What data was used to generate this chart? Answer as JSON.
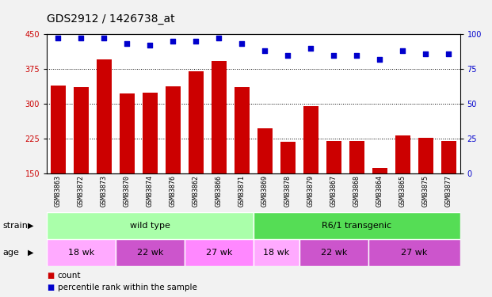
{
  "title": "GDS2912 / 1426738_at",
  "samples": [
    "GSM83863",
    "GSM83872",
    "GSM83873",
    "GSM83870",
    "GSM83874",
    "GSM83876",
    "GSM83862",
    "GSM83866",
    "GSM83871",
    "GSM83869",
    "GSM83878",
    "GSM83879",
    "GSM83867",
    "GSM83868",
    "GSM83864",
    "GSM83865",
    "GSM83875",
    "GSM83877"
  ],
  "counts": [
    340,
    337,
    395,
    322,
    325,
    338,
    370,
    393,
    336,
    248,
    218,
    295,
    221,
    221,
    162,
    232,
    227,
    220
  ],
  "percentiles": [
    97,
    97,
    97,
    93,
    92,
    95,
    95,
    97,
    93,
    88,
    85,
    90,
    85,
    85,
    82,
    88,
    86,
    86
  ],
  "bar_color": "#cc0000",
  "dot_color": "#0000cc",
  "ylim_left": [
    150,
    450
  ],
  "ylim_right": [
    0,
    100
  ],
  "yticks_left": [
    150,
    225,
    300,
    375,
    450
  ],
  "yticks_right": [
    0,
    25,
    50,
    75,
    100
  ],
  "strain_groups": [
    {
      "label": "wild type",
      "start": 0,
      "end": 9,
      "color": "#aaffaa"
    },
    {
      "label": "R6/1 transgenic",
      "start": 9,
      "end": 18,
      "color": "#55dd55"
    }
  ],
  "age_groups": [
    {
      "label": "18 wk",
      "start": 0,
      "end": 3,
      "color": "#ffaaff"
    },
    {
      "label": "22 wk",
      "start": 3,
      "end": 6,
      "color": "#cc55cc"
    },
    {
      "label": "27 wk",
      "start": 6,
      "end": 9,
      "color": "#ff88ff"
    },
    {
      "label": "18 wk",
      "start": 9,
      "end": 11,
      "color": "#ffaaff"
    },
    {
      "label": "22 wk",
      "start": 11,
      "end": 14,
      "color": "#cc55cc"
    },
    {
      "label": "27 wk",
      "start": 14,
      "end": 18,
      "color": "#cc55cc"
    }
  ],
  "legend_count_label": "count",
  "legend_percentile_label": "percentile rank within the sample",
  "strain_label": "strain",
  "age_label": "age",
  "bg_color": "#ffffff",
  "fig_bg_color": "#f2f2f2",
  "gray_color": "#cccccc",
  "title_fontsize": 10,
  "tick_fontsize": 7,
  "sample_fontsize": 6,
  "row_fontsize": 8,
  "legend_fontsize": 7.5
}
